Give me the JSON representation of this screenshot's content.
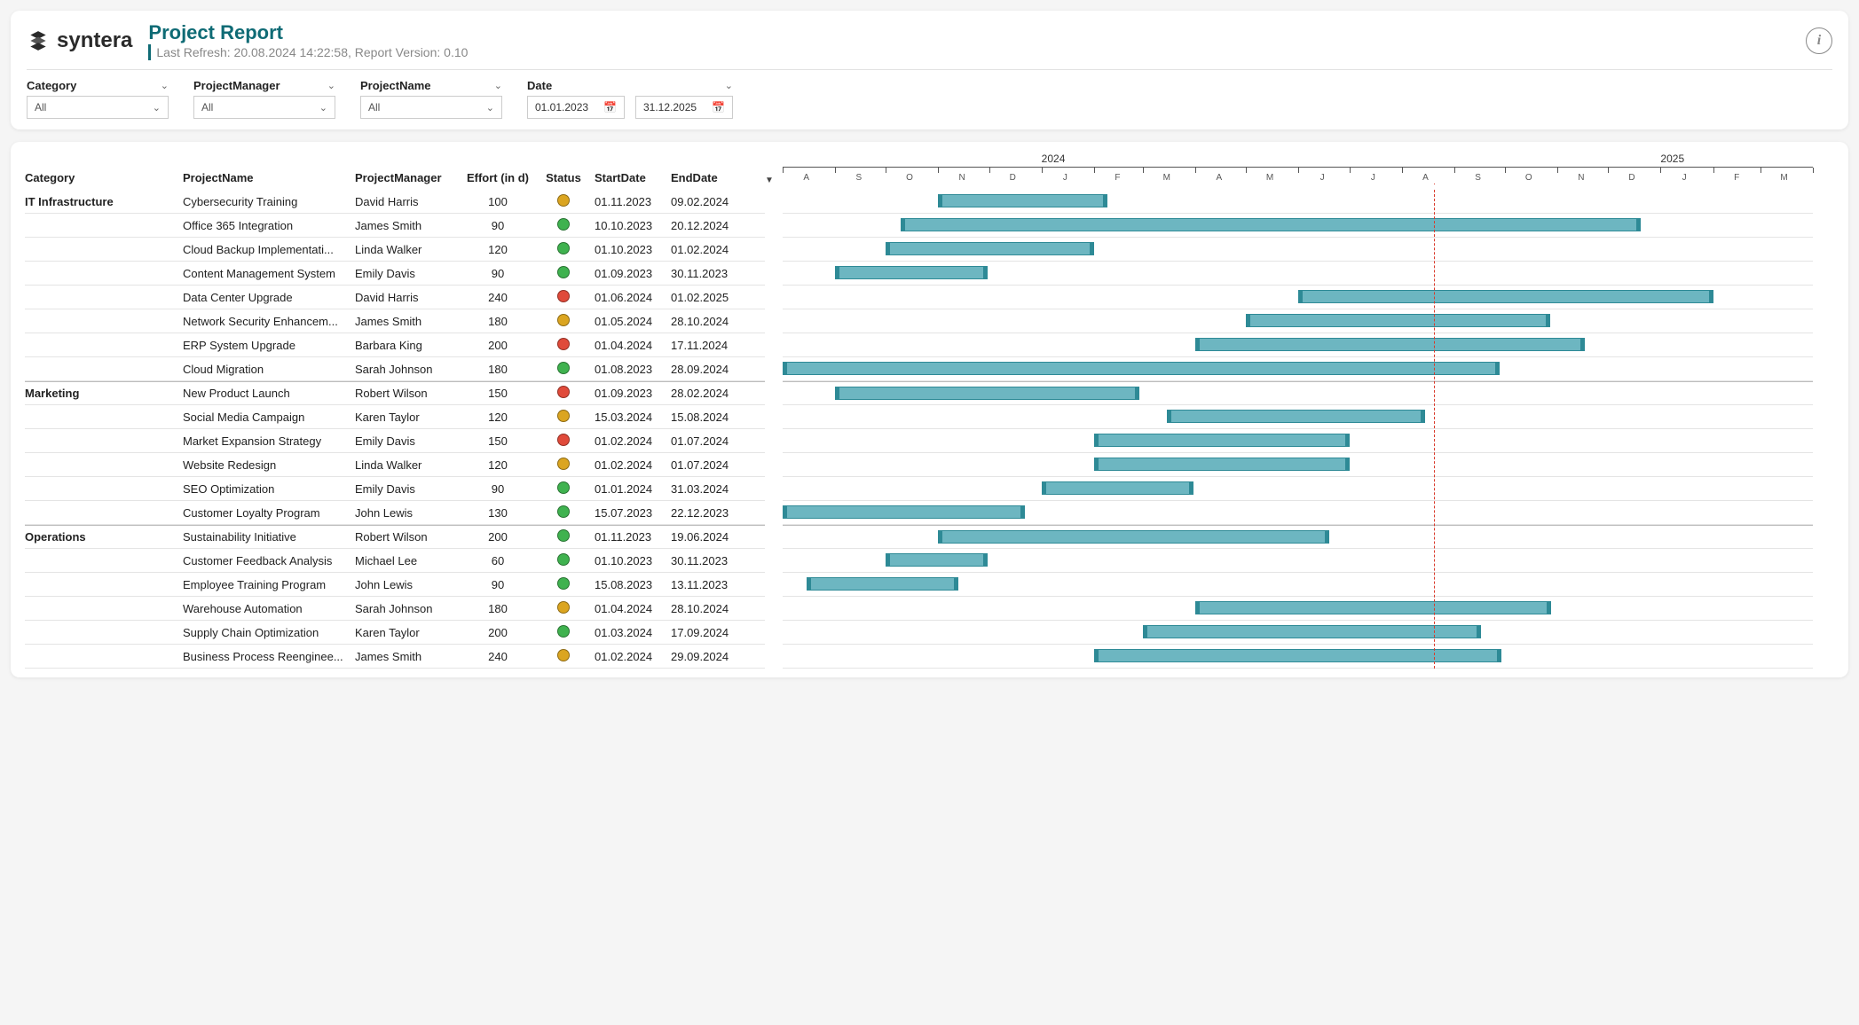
{
  "header": {
    "brand": "syntera",
    "title": "Project Report",
    "subtitle": "Last Refresh: 20.08.2024 14:22:58, Report Version: 0.10"
  },
  "filters": {
    "category": {
      "label": "Category",
      "value": "All"
    },
    "projectManager": {
      "label": "ProjectManager",
      "value": "All"
    },
    "projectName": {
      "label": "ProjectName",
      "value": "All"
    },
    "date": {
      "label": "Date",
      "from": "01.01.2023",
      "to": "31.12.2025"
    }
  },
  "columns": {
    "category": "Category",
    "projectName": "ProjectName",
    "projectManager": "ProjectManager",
    "effort": "Effort (in d)",
    "status": "Status",
    "startDate": "StartDate",
    "endDate": "EndDate"
  },
  "statusColors": {
    "green": "#3fb24f",
    "orange": "#dba520",
    "red": "#e04a3a"
  },
  "gantt": {
    "barFill": "#6db6c1",
    "barStroke": "#2e8a96",
    "todayColor": "#d93a2b",
    "rangeStart": "2023-08-01",
    "rangeEnd": "2025-04-01",
    "today": "2024-08-20",
    "years": [
      {
        "label": "2024",
        "at": "2024-01-01"
      },
      {
        "label": "2025",
        "at": "2025-01-01"
      }
    ],
    "months": [
      {
        "l": "A",
        "at": "2023-08-15"
      },
      {
        "l": "S",
        "at": "2023-09-15"
      },
      {
        "l": "O",
        "at": "2023-10-15"
      },
      {
        "l": "N",
        "at": "2023-11-15"
      },
      {
        "l": "D",
        "at": "2023-12-15"
      },
      {
        "l": "J",
        "at": "2024-01-15"
      },
      {
        "l": "F",
        "at": "2024-02-15"
      },
      {
        "l": "M",
        "at": "2024-03-15"
      },
      {
        "l": "A",
        "at": "2024-04-15"
      },
      {
        "l": "M",
        "at": "2024-05-15"
      },
      {
        "l": "J",
        "at": "2024-06-15"
      },
      {
        "l": "J",
        "at": "2024-07-15"
      },
      {
        "l": "A",
        "at": "2024-08-15"
      },
      {
        "l": "S",
        "at": "2024-09-15"
      },
      {
        "l": "O",
        "at": "2024-10-15"
      },
      {
        "l": "N",
        "at": "2024-11-15"
      },
      {
        "l": "D",
        "at": "2024-12-15"
      },
      {
        "l": "J",
        "at": "2025-01-15"
      },
      {
        "l": "F",
        "at": "2025-02-15"
      },
      {
        "l": "M",
        "at": "2025-03-15"
      }
    ],
    "ticks": [
      "2023-08-01",
      "2023-09-01",
      "2023-10-01",
      "2023-11-01",
      "2023-12-01",
      "2024-01-01",
      "2024-02-01",
      "2024-03-01",
      "2024-04-01",
      "2024-05-01",
      "2024-06-01",
      "2024-07-01",
      "2024-08-01",
      "2024-09-01",
      "2024-10-01",
      "2024-11-01",
      "2024-12-01",
      "2025-01-01",
      "2025-02-01",
      "2025-03-01",
      "2025-04-01"
    ]
  },
  "rows": [
    {
      "category": "IT Infrastructure",
      "showCat": true,
      "projectName": "Cybersecurity Training",
      "projectManager": "David Harris",
      "effort": "100",
      "status": "orange",
      "startDate": "01.11.2023",
      "endDate": "09.02.2024",
      "barStart": "2023-11-01",
      "barEnd": "2024-02-09"
    },
    {
      "category": "IT Infrastructure",
      "showCat": false,
      "projectName": "Office 365 Integration",
      "projectManager": "James Smith",
      "effort": "90",
      "status": "green",
      "startDate": "10.10.2023",
      "endDate": "20.12.2024",
      "barStart": "2023-10-10",
      "barEnd": "2024-12-20"
    },
    {
      "category": "IT Infrastructure",
      "showCat": false,
      "projectName": "Cloud Backup Implementati...",
      "projectManager": "Linda Walker",
      "effort": "120",
      "status": "green",
      "startDate": "01.10.2023",
      "endDate": "01.02.2024",
      "barStart": "2023-10-01",
      "barEnd": "2024-02-01"
    },
    {
      "category": "IT Infrastructure",
      "showCat": false,
      "projectName": "Content Management System",
      "projectManager": "Emily Davis",
      "effort": "90",
      "status": "green",
      "startDate": "01.09.2023",
      "endDate": "30.11.2023",
      "barStart": "2023-09-01",
      "barEnd": "2023-11-30"
    },
    {
      "category": "IT Infrastructure",
      "showCat": false,
      "projectName": "Data Center Upgrade",
      "projectManager": "David Harris",
      "effort": "240",
      "status": "red",
      "startDate": "01.06.2024",
      "endDate": "01.02.2025",
      "barStart": "2024-06-01",
      "barEnd": "2025-02-01"
    },
    {
      "category": "IT Infrastructure",
      "showCat": false,
      "projectName": "Network Security Enhancem...",
      "projectManager": "James Smith",
      "effort": "180",
      "status": "orange",
      "startDate": "01.05.2024",
      "endDate": "28.10.2024",
      "barStart": "2024-05-01",
      "barEnd": "2024-10-28"
    },
    {
      "category": "IT Infrastructure",
      "showCat": false,
      "projectName": "ERP System Upgrade",
      "projectManager": "Barbara King",
      "effort": "200",
      "status": "red",
      "startDate": "01.04.2024",
      "endDate": "17.11.2024",
      "barStart": "2024-04-01",
      "barEnd": "2024-11-17"
    },
    {
      "category": "IT Infrastructure",
      "showCat": false,
      "projectName": "Cloud Migration",
      "projectManager": "Sarah Johnson",
      "effort": "180",
      "status": "green",
      "startDate": "01.08.2023",
      "endDate": "28.09.2024",
      "barStart": "2023-08-01",
      "barEnd": "2024-09-28"
    },
    {
      "category": "Marketing",
      "showCat": true,
      "projectName": "New Product Launch",
      "projectManager": "Robert Wilson",
      "effort": "150",
      "status": "red",
      "startDate": "01.09.2023",
      "endDate": "28.02.2024",
      "barStart": "2023-09-01",
      "barEnd": "2024-02-28"
    },
    {
      "category": "Marketing",
      "showCat": false,
      "projectName": "Social Media Campaign",
      "projectManager": "Karen Taylor",
      "effort": "120",
      "status": "orange",
      "startDate": "15.03.2024",
      "endDate": "15.08.2024",
      "barStart": "2024-03-15",
      "barEnd": "2024-08-15"
    },
    {
      "category": "Marketing",
      "showCat": false,
      "projectName": "Market Expansion Strategy",
      "projectManager": "Emily Davis",
      "effort": "150",
      "status": "red",
      "startDate": "01.02.2024",
      "endDate": "01.07.2024",
      "barStart": "2024-02-01",
      "barEnd": "2024-07-01"
    },
    {
      "category": "Marketing",
      "showCat": false,
      "projectName": "Website Redesign",
      "projectManager": "Linda Walker",
      "effort": "120",
      "status": "orange",
      "startDate": "01.02.2024",
      "endDate": "01.07.2024",
      "barStart": "2024-02-01",
      "barEnd": "2024-07-01"
    },
    {
      "category": "Marketing",
      "showCat": false,
      "projectName": "SEO Optimization",
      "projectManager": "Emily Davis",
      "effort": "90",
      "status": "green",
      "startDate": "01.01.2024",
      "endDate": "31.03.2024",
      "barStart": "2024-01-01",
      "barEnd": "2024-03-31"
    },
    {
      "category": "Marketing",
      "showCat": false,
      "projectName": "Customer Loyalty Program",
      "projectManager": "John Lewis",
      "effort": "130",
      "status": "green",
      "startDate": "15.07.2023",
      "endDate": "22.12.2023",
      "barStart": "2023-08-01",
      "barEnd": "2023-12-22"
    },
    {
      "category": "Operations",
      "showCat": true,
      "projectName": "Sustainability Initiative",
      "projectManager": "Robert Wilson",
      "effort": "200",
      "status": "green",
      "startDate": "01.11.2023",
      "endDate": "19.06.2024",
      "barStart": "2023-11-01",
      "barEnd": "2024-06-19"
    },
    {
      "category": "Operations",
      "showCat": false,
      "projectName": "Customer Feedback Analysis",
      "projectManager": "Michael Lee",
      "effort": "60",
      "status": "green",
      "startDate": "01.10.2023",
      "endDate": "30.11.2023",
      "barStart": "2023-10-01",
      "barEnd": "2023-11-30"
    },
    {
      "category": "Operations",
      "showCat": false,
      "projectName": "Employee Training Program",
      "projectManager": "John Lewis",
      "effort": "90",
      "status": "green",
      "startDate": "15.08.2023",
      "endDate": "13.11.2023",
      "barStart": "2023-08-15",
      "barEnd": "2023-11-13"
    },
    {
      "category": "Operations",
      "showCat": false,
      "projectName": "Warehouse Automation",
      "projectManager": "Sarah Johnson",
      "effort": "180",
      "status": "orange",
      "startDate": "01.04.2024",
      "endDate": "28.10.2024",
      "barStart": "2024-04-01",
      "barEnd": "2024-10-28"
    },
    {
      "category": "Operations",
      "showCat": false,
      "projectName": "Supply Chain Optimization",
      "projectManager": "Karen Taylor",
      "effort": "200",
      "status": "green",
      "startDate": "01.03.2024",
      "endDate": "17.09.2024",
      "barStart": "2024-03-01",
      "barEnd": "2024-09-17"
    },
    {
      "category": "Operations",
      "showCat": false,
      "projectName": "Business Process Reenginee...",
      "projectManager": "James Smith",
      "effort": "240",
      "status": "orange",
      "startDate": "01.02.2024",
      "endDate": "29.09.2024",
      "barStart": "2024-02-01",
      "barEnd": "2024-09-29"
    }
  ]
}
